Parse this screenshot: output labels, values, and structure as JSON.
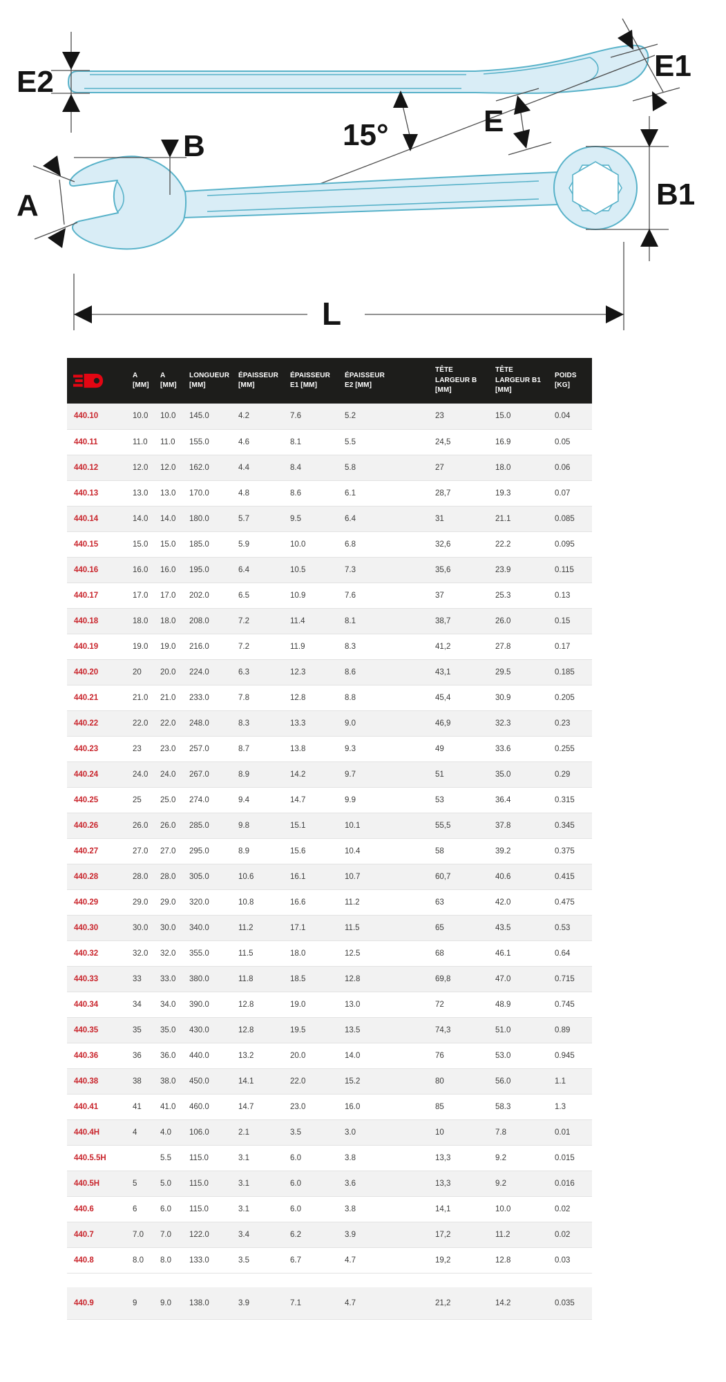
{
  "diagram": {
    "labels": {
      "e2": "E2",
      "e1": "E1",
      "e": "E",
      "angle": "15°",
      "b": "B",
      "a": "A",
      "b1": "B1",
      "l": "L"
    }
  },
  "table": {
    "columns": [
      "",
      "A\n[MM]",
      "A\n[MM]",
      "LONGUEUR\n[MM]",
      "ÉPAISSEUR\n[MM]",
      "ÉPAISSEUR\nE1 [MM]",
      "ÉPAISSEUR\nE2 [MM]",
      "TÊTE\nLARGEUR B\n[MM]",
      "TÊTE\nLARGEUR B1\n[MM]",
      "POIDS\n[KG]"
    ],
    "rows": [
      {
        "ref": "440.10",
        "values": [
          "10.0",
          "10.0",
          "145.0",
          "4.2",
          "7.6",
          "5.2",
          "23",
          "15.0",
          "0.04"
        ]
      },
      {
        "ref": "440.11",
        "values": [
          "11.0",
          "11.0",
          "155.0",
          "4.6",
          "8.1",
          "5.5",
          "24,5",
          "16.9",
          "0.05"
        ]
      },
      {
        "ref": "440.12",
        "values": [
          "12.0",
          "12.0",
          "162.0",
          "4.4",
          "8.4",
          "5.8",
          "27",
          "18.0",
          "0.06"
        ]
      },
      {
        "ref": "440.13",
        "values": [
          "13.0",
          "13.0",
          "170.0",
          "4.8",
          "8.6",
          "6.1",
          "28,7",
          "19.3",
          "0.07"
        ]
      },
      {
        "ref": "440.14",
        "values": [
          "14.0",
          "14.0",
          "180.0",
          "5.7",
          "9.5",
          "6.4",
          "31",
          "21.1",
          "0.085"
        ]
      },
      {
        "ref": "440.15",
        "values": [
          "15.0",
          "15.0",
          "185.0",
          "5.9",
          "10.0",
          "6.8",
          "32,6",
          "22.2",
          "0.095"
        ]
      },
      {
        "ref": "440.16",
        "values": [
          "16.0",
          "16.0",
          "195.0",
          "6.4",
          "10.5",
          "7.3",
          "35,6",
          "23.9",
          "0.115"
        ]
      },
      {
        "ref": "440.17",
        "values": [
          "17.0",
          "17.0",
          "202.0",
          "6.5",
          "10.9",
          "7.6",
          "37",
          "25.3",
          "0.13"
        ]
      },
      {
        "ref": "440.18",
        "values": [
          "18.0",
          "18.0",
          "208.0",
          "7.2",
          "11.4",
          "8.1",
          "38,7",
          "26.0",
          "0.15"
        ]
      },
      {
        "ref": "440.19",
        "values": [
          "19.0",
          "19.0",
          "216.0",
          "7.2",
          "11.9",
          "8.3",
          "41,2",
          "27.8",
          "0.17"
        ]
      },
      {
        "ref": "440.20",
        "values": [
          "20",
          "20.0",
          "224.0",
          "6.3",
          "12.3",
          "8.6",
          "43,1",
          "29.5",
          "0.185"
        ]
      },
      {
        "ref": "440.21",
        "values": [
          "21.0",
          "21.0",
          "233.0",
          "7.8",
          "12.8",
          "8.8",
          "45,4",
          "30.9",
          "0.205"
        ]
      },
      {
        "ref": "440.22",
        "values": [
          "22.0",
          "22.0",
          "248.0",
          "8.3",
          "13.3",
          "9.0",
          "46,9",
          "32.3",
          "0.23"
        ]
      },
      {
        "ref": "440.23",
        "values": [
          "23",
          "23.0",
          "257.0",
          "8.7",
          "13.8",
          "9.3",
          "49",
          "33.6",
          "0.255"
        ]
      },
      {
        "ref": "440.24",
        "values": [
          "24.0",
          "24.0",
          "267.0",
          "8.9",
          "14.2",
          "9.7",
          "51",
          "35.0",
          "0.29"
        ]
      },
      {
        "ref": "440.25",
        "values": [
          "25",
          "25.0",
          "274.0",
          "9.4",
          "14.7",
          "9.9",
          "53",
          "36.4",
          "0.315"
        ]
      },
      {
        "ref": "440.26",
        "values": [
          "26.0",
          "26.0",
          "285.0",
          "9.8",
          "15.1",
          "10.1",
          "55,5",
          "37.8",
          "0.345"
        ]
      },
      {
        "ref": "440.27",
        "values": [
          "27.0",
          "27.0",
          "295.0",
          "8.9",
          "15.6",
          "10.4",
          "58",
          "39.2",
          "0.375"
        ]
      },
      {
        "ref": "440.28",
        "values": [
          "28.0",
          "28.0",
          "305.0",
          "10.6",
          "16.1",
          "10.7",
          "60,7",
          "40.6",
          "0.415"
        ]
      },
      {
        "ref": "440.29",
        "values": [
          "29.0",
          "29.0",
          "320.0",
          "10.8",
          "16.6",
          "11.2",
          "63",
          "42.0",
          "0.475"
        ]
      },
      {
        "ref": "440.30",
        "values": [
          "30.0",
          "30.0",
          "340.0",
          "11.2",
          "17.1",
          "11.5",
          "65",
          "43.5",
          "0.53"
        ]
      },
      {
        "ref": "440.32",
        "values": [
          "32.0",
          "32.0",
          "355.0",
          "11.5",
          "18.0",
          "12.5",
          "68",
          "46.1",
          "0.64"
        ]
      },
      {
        "ref": "440.33",
        "values": [
          "33",
          "33.0",
          "380.0",
          "11.8",
          "18.5",
          "12.8",
          "69,8",
          "47.0",
          "0.715"
        ]
      },
      {
        "ref": "440.34",
        "values": [
          "34",
          "34.0",
          "390.0",
          "12.8",
          "19.0",
          "13.0",
          "72",
          "48.9",
          "0.745"
        ]
      },
      {
        "ref": "440.35",
        "values": [
          "35",
          "35.0",
          "430.0",
          "12.8",
          "19.5",
          "13.5",
          "74,3",
          "51.0",
          "0.89"
        ]
      },
      {
        "ref": "440.36",
        "values": [
          "36",
          "36.0",
          "440.0",
          "13.2",
          "20.0",
          "14.0",
          "76",
          "53.0",
          "0.945"
        ]
      },
      {
        "ref": "440.38",
        "values": [
          "38",
          "38.0",
          "450.0",
          "14.1",
          "22.0",
          "15.2",
          "80",
          "56.0",
          "1.1"
        ]
      },
      {
        "ref": "440.41",
        "values": [
          "41",
          "41.0",
          "460.0",
          "14.7",
          "23.0",
          "16.0",
          "85",
          "58.3",
          "1.3"
        ]
      },
      {
        "ref": "440.4H",
        "values": [
          "4",
          "4.0",
          "106.0",
          "2.1",
          "3.5",
          "3.0",
          "10",
          "7.8",
          "0.01"
        ]
      },
      {
        "ref": "440.5.5H",
        "values": [
          "",
          "5.5",
          "115.0",
          "3.1",
          "6.0",
          "3.8",
          "13,3",
          "9.2",
          "0.015"
        ]
      },
      {
        "ref": "440.5H",
        "values": [
          "5",
          "5.0",
          "115.0",
          "3.1",
          "6.0",
          "3.6",
          "13,3",
          "9.2",
          "0.016"
        ]
      },
      {
        "ref": "440.6",
        "values": [
          "6",
          "6.0",
          "115.0",
          "3.1",
          "6.0",
          "3.8",
          "14,1",
          "10.0",
          "0.02"
        ]
      },
      {
        "ref": "440.7",
        "values": [
          "7.0",
          "7.0",
          "122.0",
          "3.4",
          "6.2",
          "3.9",
          "17,2",
          "11.2",
          "0.02"
        ]
      },
      {
        "ref": "440.8",
        "values": [
          "8.0",
          "8.0",
          "133.0",
          "3.5",
          "6.7",
          "4.7",
          "19,2",
          "12.8",
          "0.03"
        ]
      },
      {
        "ref": "440.9",
        "values": [
          "9",
          "9.0",
          "138.0",
          "3.9",
          "7.1",
          "4.7",
          "21,2",
          "14.2",
          "0.035"
        ]
      }
    ]
  },
  "colors": {
    "header_bg": "#1d1d1b",
    "header_text": "#ffffff",
    "brand_red": "#e30613",
    "ref_red": "#c9252c",
    "row_alt": "#f2f2f2",
    "row_border": "#e2e2e2",
    "cell_text": "#3c3c3b",
    "draw_fill": "#d9edf6",
    "draw_stroke": "#58b2c9",
    "dim_color": "#4d4d4d"
  }
}
